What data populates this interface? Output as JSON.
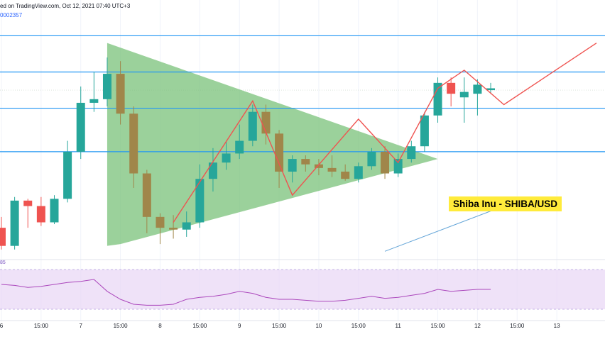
{
  "header": {
    "publisher_text": "ed on TradingView.com, Oct 12, 2021 07:40 UTC+3",
    "price_fragment": "0002357",
    "rsi_fragment": "85"
  },
  "label": {
    "title": "Shiba Inu - SHIBA/USD"
  },
  "colors": {
    "bull": "#26a69a",
    "bear": "#ef5350",
    "bear_on_green": "#a0864a",
    "triangle_fill": "#7ac27a",
    "zigzag": "#ef5350",
    "hline": "#2196f3",
    "rsi_line": "#ab47bc",
    "rsi_band": "#e8d5f5",
    "label_bg": "#ffeb3b"
  },
  "chart_data": {
    "type": "candlestick",
    "x_tick_labels": [
      "6",
      "15:00",
      "7",
      "15:00",
      "8",
      "15:00",
      "9",
      "15:00",
      "10",
      "15:00",
      "11",
      "15:00",
      "12",
      "15:00",
      "13"
    ],
    "candles": [
      {
        "o": 1.88e-05,
        "h": 1.94e-05,
        "l": 1.76e-05,
        "c": 1.78e-05
      },
      {
        "o": 1.78e-05,
        "h": 2.05e-05,
        "l": 1.76e-05,
        "c": 2.03e-05
      },
      {
        "o": 2.03e-05,
        "h": 2.04e-05,
        "l": 1.88e-05,
        "c": 2e-05
      },
      {
        "o": 2e-05,
        "h": 2.05e-05,
        "l": 1.89e-05,
        "c": 1.91e-05
      },
      {
        "o": 1.91e-05,
        "h": 2.06e-05,
        "l": 1.9e-05,
        "c": 2.04e-05
      },
      {
        "o": 2.04e-05,
        "h": 2.36e-05,
        "l": 2.02e-05,
        "c": 2.3e-05
      },
      {
        "o": 2.3e-05,
        "h": 2.66e-05,
        "l": 2.26e-05,
        "c": 2.57e-05
      },
      {
        "o": 2.57e-05,
        "h": 2.74e-05,
        "l": 2.52e-05,
        "c": 2.59e-05
      },
      {
        "o": 2.59e-05,
        "h": 2.82e-05,
        "l": 2.55e-05,
        "c": 2.73e-05
      },
      {
        "o": 2.73e-05,
        "h": 2.8e-05,
        "l": 2.45e-05,
        "c": 2.51e-05
      },
      {
        "o": 2.51e-05,
        "h": 2.55e-05,
        "l": 2.1e-05,
        "c": 2.18e-05
      },
      {
        "o": 2.18e-05,
        "h": 2.2e-05,
        "l": 1.85e-05,
        "c": 1.94e-05
      },
      {
        "o": 1.94e-05,
        "h": 1.96e-05,
        "l": 1.79e-05,
        "c": 1.88e-05
      },
      {
        "o": 1.88e-05,
        "h": 1.95e-05,
        "l": 1.82e-05,
        "c": 1.87e-05
      },
      {
        "o": 1.87e-05,
        "h": 1.97e-05,
        "l": 1.83e-05,
        "c": 1.91e-05
      },
      {
        "o": 1.91e-05,
        "h": 2.23e-05,
        "l": 1.88e-05,
        "c": 2.15e-05
      },
      {
        "o": 2.15e-05,
        "h": 2.32e-05,
        "l": 2.08e-05,
        "c": 2.24e-05
      },
      {
        "o": 2.24e-05,
        "h": 2.36e-05,
        "l": 2.2e-05,
        "c": 2.29e-05
      },
      {
        "o": 2.29e-05,
        "h": 2.45e-05,
        "l": 2.26e-05,
        "c": 2.36e-05
      },
      {
        "o": 2.36e-05,
        "h": 2.56e-05,
        "l": 2.33e-05,
        "c": 2.52e-05
      },
      {
        "o": 2.52e-05,
        "h": 2.56e-05,
        "l": 2.34e-05,
        "c": 2.4e-05
      },
      {
        "o": 2.4e-05,
        "h": 2.42e-05,
        "l": 2.1e-05,
        "c": 2.19e-05
      },
      {
        "o": 2.19e-05,
        "h": 2.28e-05,
        "l": 2.13e-05,
        "c": 2.26e-05
      },
      {
        "o": 2.26e-05,
        "h": 2.28e-05,
        "l": 2.19e-05,
        "c": 2.23e-05
      },
      {
        "o": 2.23e-05,
        "h": 2.26e-05,
        "l": 2.17e-05,
        "c": 2.21e-05
      },
      {
        "o": 2.21e-05,
        "h": 2.28e-05,
        "l": 2.16e-05,
        "c": 2.19e-05
      },
      {
        "o": 2.19e-05,
        "h": 2.23e-05,
        "l": 2.14e-05,
        "c": 2.15e-05
      },
      {
        "o": 2.15e-05,
        "h": 2.24e-05,
        "l": 2.13e-05,
        "c": 2.22e-05
      },
      {
        "o": 2.22e-05,
        "h": 2.32e-05,
        "l": 2.2e-05,
        "c": 2.3e-05
      },
      {
        "o": 2.3e-05,
        "h": 2.33e-05,
        "l": 2.15e-05,
        "c": 2.18e-05
      },
      {
        "o": 2.18e-05,
        "h": 2.29e-05,
        "l": 2.16e-05,
        "c": 2.26e-05
      },
      {
        "o": 2.26e-05,
        "h": 2.36e-05,
        "l": 2.24e-05,
        "c": 2.33e-05
      },
      {
        "o": 2.33e-05,
        "h": 2.52e-05,
        "l": 2.3e-05,
        "c": 2.5e-05
      },
      {
        "o": 2.5e-05,
        "h": 2.71e-05,
        "l": 2.46e-05,
        "c": 2.68e-05
      },
      {
        "o": 2.68e-05,
        "h": 2.71e-05,
        "l": 2.55e-05,
        "c": 2.62e-05
      },
      {
        "o": 2.6e-05,
        "h": 2.71e-05,
        "l": 2.46e-05,
        "c": 2.63e-05
      },
      {
        "o": 2.62e-05,
        "h": 2.7e-05,
        "l": 2.5e-05,
        "c": 2.67e-05
      },
      {
        "o": 2.64e-05,
        "h": 2.68e-05,
        "l": 2.62e-05,
        "c": 2.65e-05
      }
    ],
    "horizontal_levels": [
      2.94e-05,
      2.74e-05,
      2.54e-05,
      2.3e-05
    ],
    "triangle": {
      "apex_high": [
        7.333,
        2.9e-05
      ],
      "base_low": [
        7.333,
        1.78e-05
      ],
      "tip": [
        11.5,
        2.26e-05
      ],
      "lower_start": [
        7.5,
        1.79e-05
      ]
    },
    "zigzag_path": [
      [
        8.167,
        1.91e-05
      ],
      [
        9.167,
        2.58e-05
      ],
      [
        9.667,
        2.06e-05
      ],
      [
        10.5,
        2.48e-05
      ],
      [
        11.0,
        2.24e-05
      ],
      [
        11.5,
        2.65e-05
      ],
      [
        11.833,
        2.75e-05
      ],
      [
        12.333,
        2.56e-05
      ],
      [
        13.5,
        2.9e-05
      ]
    ],
    "trendline": [
      [
        10.833,
        1.75e-05
      ],
      [
        12.333,
        2e-05
      ]
    ],
    "rsi": [
      55,
      54,
      52,
      53,
      55,
      57,
      58,
      60,
      48,
      40,
      35,
      34,
      34,
      35,
      40,
      42,
      43,
      45,
      48,
      46,
      42,
      40,
      40,
      39,
      38,
      38,
      39,
      41,
      43,
      41,
      42,
      44,
      46,
      50,
      48,
      49,
      50,
      50
    ],
    "rsi_band": [
      30,
      70
    ],
    "xlim": [
      6.0,
      13.5
    ],
    "ylim": [
      1.72e-05,
      3.02e-05
    ]
  }
}
